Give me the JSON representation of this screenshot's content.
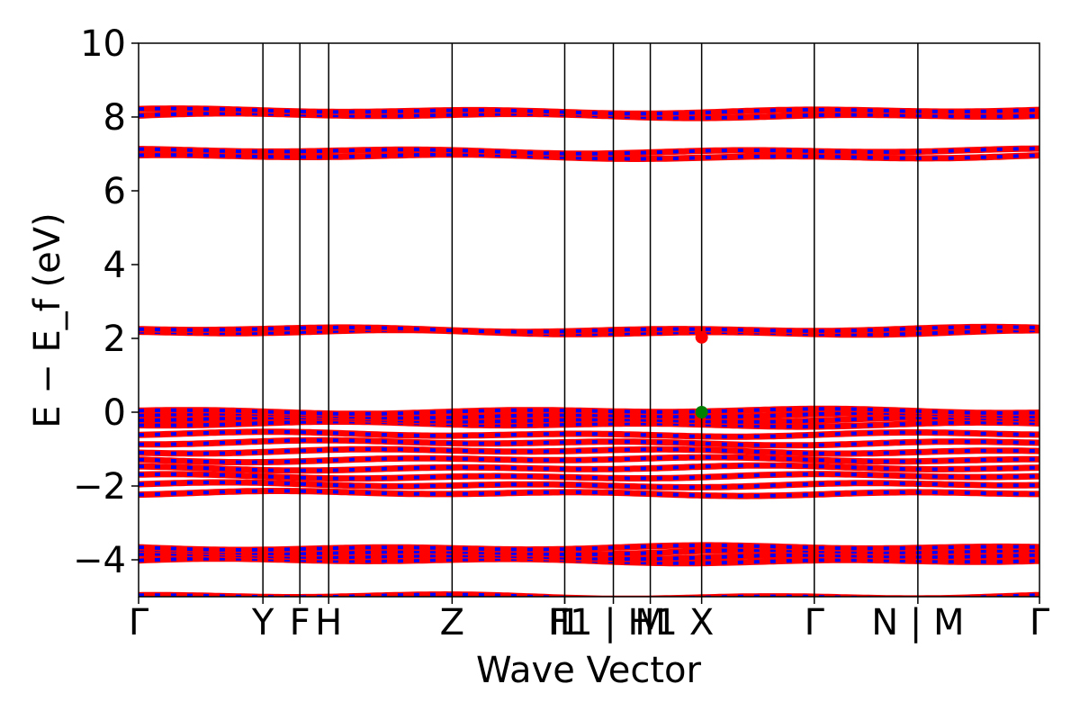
{
  "chart_data": {
    "type": "line",
    "title": "",
    "xlabel": "Wave Vector",
    "ylabel": "E − E_f (eV)",
    "ylim": [
      -5,
      10
    ],
    "yticks": [
      -4,
      -2,
      0,
      2,
      4,
      6,
      8,
      10
    ],
    "ytick_labels": [
      "−4",
      "−2",
      "0",
      "2",
      "4",
      "6",
      "8",
      "10"
    ],
    "xlim": [
      0,
      1
    ],
    "kpoints": [
      {
        "label": "Γ",
        "x": 0.0
      },
      {
        "label": "Y",
        "x": 0.138
      },
      {
        "label": "F",
        "x": 0.179
      },
      {
        "label": "H",
        "x": 0.211
      },
      {
        "label": "Z",
        "x": 0.348
      },
      {
        "label": "I",
        "x": 0.473
      },
      {
        "label": "F1 | H1",
        "x": 0.527
      },
      {
        "label": "I1",
        "x": 0.473
      },
      {
        "label": "M",
        "x": 0.568
      },
      {
        "label": "X",
        "x": 0.625
      },
      {
        "label": "Γ",
        "x": 0.75
      },
      {
        "label": "N | M",
        "x": 0.865
      },
      {
        "label": "Γ",
        "x": 1.0
      }
    ],
    "vertical_lines": [
      0.138,
      0.179,
      0.211,
      0.348,
      0.473,
      0.527,
      0.568,
      0.625,
      0.75,
      0.865
    ],
    "band_colors": {
      "primary": "#ff0000",
      "secondary": "#0000ff"
    },
    "band_groups": [
      {
        "center": 8.1,
        "width": 0.12,
        "nbands": 2
      },
      {
        "center": 7.0,
        "width": 0.15,
        "nbands": 2
      },
      {
        "center": 2.2,
        "width": 0.08,
        "nbands": 2
      },
      {
        "center": -0.15,
        "width": 0.35,
        "nbands": 4
      },
      {
        "center": -1.4,
        "width": 1.6,
        "nbands": 8
      },
      {
        "center": -3.85,
        "width": 0.35,
        "nbands": 4
      },
      {
        "center": -5.0,
        "width": 0.05,
        "nbands": 1
      }
    ],
    "markers": [
      {
        "name": "cbm",
        "x": 0.625,
        "y": 2.03,
        "color": "#ff0000"
      },
      {
        "name": "vbm",
        "x": 0.625,
        "y": 0.0,
        "color": "#008000"
      }
    ],
    "grid": false
  }
}
